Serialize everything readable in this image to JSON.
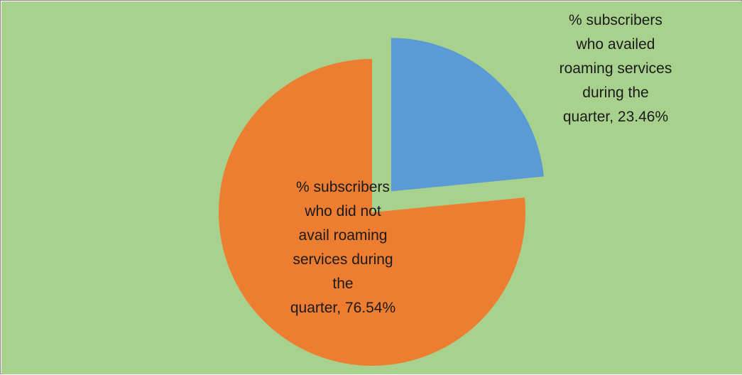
{
  "chart_data": {
    "type": "pie",
    "exploded": true,
    "background": "#a9d18e",
    "slices": [
      {
        "label_lines": [
          "% subscribers",
          "who availed",
          "roaming services",
          "during the",
          "quarter, 23.46%"
        ],
        "value": 23.46,
        "color": "#5b9bd5"
      },
      {
        "label_lines": [
          "% subscribers",
          "who did not",
          "avail roaming",
          "services during",
          "the",
          "quarter, 76.54%"
        ],
        "value": 76.54,
        "color": "#ed7d31"
      }
    ]
  }
}
